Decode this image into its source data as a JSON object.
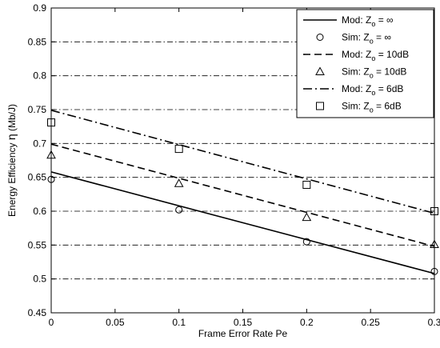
{
  "chart_data": {
    "type": "line",
    "xlabel": "Frame Error Rate Pe",
    "ylabel_prefix": "Energy Efficiency ",
    "ylabel_symbol": "η",
    "ylabel_suffix": " (Mb/J)",
    "xlim": [
      0,
      0.3
    ],
    "ylim": [
      0.45,
      0.9
    ],
    "xticks": [
      0,
      0.05,
      0.1,
      0.15,
      0.2,
      0.25,
      0.3
    ],
    "xtick_labels": [
      "0",
      "0.05",
      "0.1",
      "0.15",
      "0.2",
      "0.25",
      "0.3"
    ],
    "yticks": [
      0.45,
      0.5,
      0.55,
      0.6,
      0.65,
      0.7,
      0.75,
      0.8,
      0.85,
      0.9
    ],
    "ytick_labels": [
      "0.45",
      "0.5",
      "0.55",
      "0.6",
      "0.65",
      "0.7",
      "0.75",
      "0.8",
      "0.85",
      "0.9"
    ],
    "grid": "y-dashdot",
    "legend_position": "top-right",
    "series": [
      {
        "name": "Mod: Z_o = ∞",
        "legend_prefix": "Mod: ",
        "legend_suffix": " = ∞",
        "kind": "line",
        "style": "solid",
        "x": [
          0,
          0.3
        ],
        "y": [
          0.658,
          0.508
        ]
      },
      {
        "name": "Sim: Z_o = ∞",
        "legend_prefix": "Sim: ",
        "legend_suffix": " = ∞",
        "kind": "marker",
        "marker": "circle",
        "x": [
          0,
          0.1,
          0.2,
          0.3
        ],
        "y": [
          0.647,
          0.602,
          0.555,
          0.511
        ]
      },
      {
        "name": "Mod: Z_o = 10dB",
        "legend_prefix": "Mod: ",
        "legend_suffix": " = 10dB",
        "kind": "line",
        "style": "dashed",
        "x": [
          0,
          0.3
        ],
        "y": [
          0.699,
          0.548
        ]
      },
      {
        "name": "Sim: Z_o = 10dB",
        "legend_prefix": "Sim: ",
        "legend_suffix": " = 10dB",
        "kind": "marker",
        "marker": "triangle",
        "x": [
          0,
          0.1,
          0.2,
          0.3
        ],
        "y": [
          0.683,
          0.641,
          0.591,
          0.551
        ]
      },
      {
        "name": "Mod: Z_o = 6dB",
        "legend_prefix": "Mod: ",
        "legend_suffix": " = 6dB",
        "kind": "line",
        "style": "dashdot",
        "x": [
          0,
          0.3
        ],
        "y": [
          0.749,
          0.597
        ]
      },
      {
        "name": "Sim: Z_o = 6dB",
        "legend_prefix": "Sim: ",
        "legend_suffix": " = 6dB",
        "kind": "marker",
        "marker": "square",
        "x": [
          0,
          0.1,
          0.2,
          0.3
        ],
        "y": [
          0.731,
          0.692,
          0.639,
          0.6
        ]
      }
    ]
  }
}
